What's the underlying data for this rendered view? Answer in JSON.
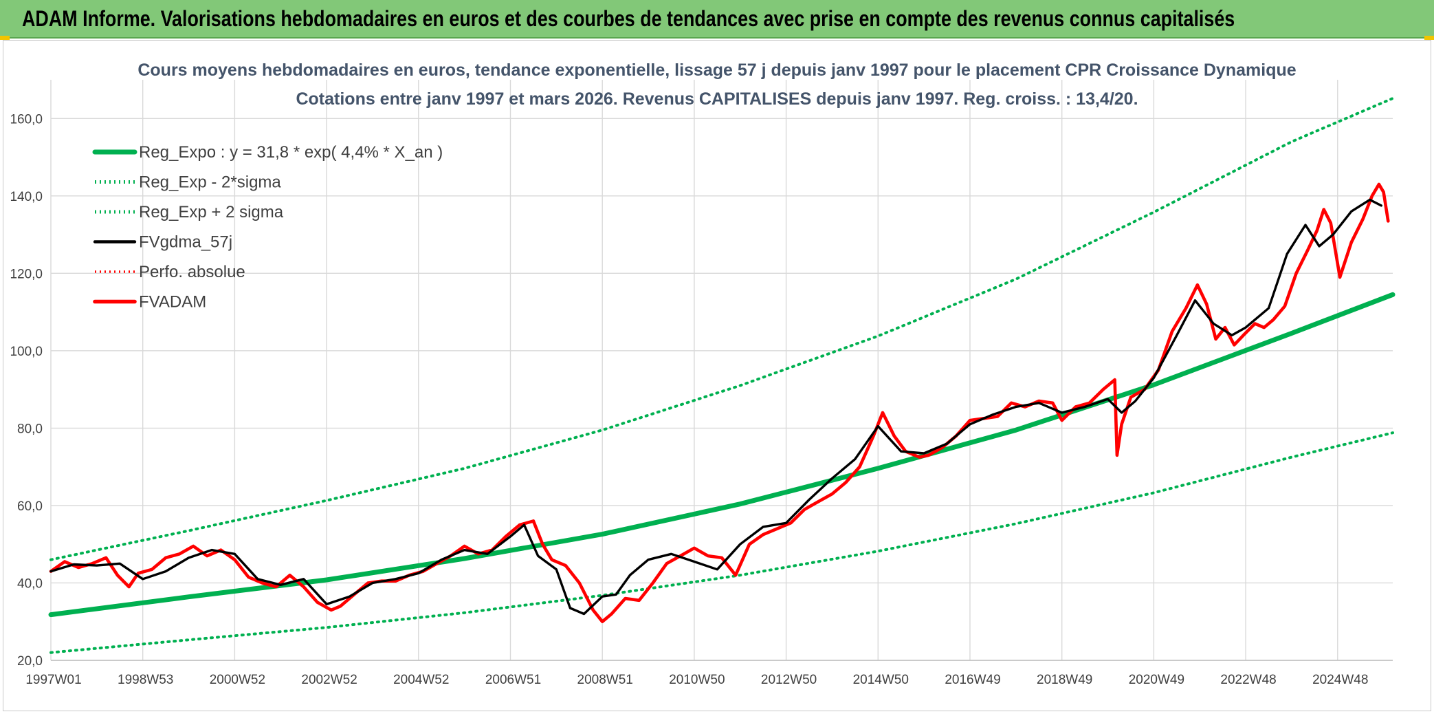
{
  "banner": {
    "title": "ADAM Informe. Valorisations hebdomadaires en euros et des courbes de tendances avec prise en compte des revenus connus capitalisés"
  },
  "colors": {
    "banner_bg": "#82c878",
    "trend": "#00b050",
    "band": "#00b050",
    "gdma": "#000000",
    "perfo": "#ff0000",
    "fvadam": "#ff0000"
  },
  "chart_data": {
    "type": "line",
    "title": "Cours moyens hebdomadaires en euros, tendance exponentielle, lissage 57 j depuis janv 1997 pour le placement CPR Croissance Dynamique",
    "subtitle": "Cotations entre janv 1997 et mars 2026. Revenus CAPITALISES depuis janv 1997. Reg. croiss. : 13,4/20.",
    "xlabel": "",
    "ylabel": "",
    "ylim": [
      20,
      170
    ],
    "xlim": [
      1997.0,
      2026.2
    ],
    "grid": true,
    "legend_position": "top-left",
    "y_ticks": [
      "20,0",
      "40,0",
      "60,0",
      "80,0",
      "100,0",
      "120,0",
      "140,0",
      "160,0"
    ],
    "x_tick_labels": [
      "1997W01",
      "1998W53",
      "2000W52",
      "2002W52",
      "2004W52",
      "2006W51",
      "2008W51",
      "2010W50",
      "2012W50",
      "2014W50",
      "2016W49",
      "2018W49",
      "2020W49",
      "2022W48",
      "2024W48"
    ],
    "x_tick_years": [
      1997.0,
      1999.0,
      2001.0,
      2003.0,
      2005.0,
      2007.0,
      2009.0,
      2011.0,
      2013.0,
      2015.0,
      2017.0,
      2019.0,
      2021.0,
      2023.0,
      2025.0
    ],
    "series": [
      {
        "name": "Reg_Expo : y = 31,8 * exp( 4,4% *  X_an )",
        "style": "solid-thick",
        "x": [
          1997.0,
          2000.0,
          2003.0,
          2006.0,
          2009.0,
          2012.0,
          2015.0,
          2018.0,
          2021.0,
          2024.0,
          2026.2
        ],
        "y": [
          31.8,
          36.4,
          40.8,
          46.3,
          52.6,
          60.4,
          69.6,
          79.5,
          91.2,
          104.5,
          114.5
        ]
      },
      {
        "name": "Reg_Exp - 2*sigma",
        "style": "dotted",
        "x": [
          1997.0,
          2000.0,
          2003.0,
          2006.0,
          2009.0,
          2012.0,
          2015.0,
          2018.0,
          2021.0,
          2024.0,
          2026.2
        ],
        "y": [
          22.0,
          25.3,
          28.5,
          32.3,
          36.8,
          42.0,
          48.2,
          55.3,
          63.3,
          72.5,
          78.8
        ]
      },
      {
        "name": "Reg_Exp + 2 sigma",
        "style": "dotted",
        "x": [
          1997.0,
          2000.0,
          2003.0,
          2006.0,
          2009.0,
          2012.0,
          2015.0,
          2018.0,
          2021.0,
          2024.0,
          2026.2
        ],
        "y": [
          46.0,
          53.5,
          61.3,
          69.6,
          79.5,
          91.0,
          103.8,
          118.5,
          135.8,
          154.0,
          165.2
        ]
      },
      {
        "name": "FVgdma_57j",
        "style": "solid",
        "x": [
          1997.0,
          1997.5,
          1998.0,
          1998.5,
          1999.0,
          1999.5,
          2000.0,
          2000.5,
          2001.0,
          2001.5,
          2002.0,
          2002.5,
          2003.0,
          2003.5,
          2004.0,
          2004.5,
          2005.0,
          2005.5,
          2006.0,
          2006.5,
          2007.0,
          2007.3,
          2007.6,
          2008.0,
          2008.3,
          2008.6,
          2009.0,
          2009.3,
          2009.6,
          2010.0,
          2010.5,
          2011.0,
          2011.5,
          2012.0,
          2012.5,
          2013.0,
          2013.5,
          2014.0,
          2014.5,
          2015.0,
          2015.5,
          2016.0,
          2016.5,
          2017.0,
          2017.5,
          2018.0,
          2018.5,
          2019.0,
          2019.5,
          2020.0,
          2020.3,
          2020.6,
          2021.0,
          2021.5,
          2021.9,
          2022.3,
          2022.7,
          2023.0,
          2023.5,
          2023.9,
          2024.3,
          2024.6,
          2024.9,
          2025.3,
          2025.7,
          2025.95
        ],
        "y": [
          43.0,
          44.8,
          44.5,
          45.0,
          41.0,
          43.0,
          46.5,
          48.5,
          47.5,
          41.0,
          39.5,
          41.0,
          34.5,
          36.5,
          40.0,
          41.0,
          42.5,
          46.0,
          48.5,
          47.5,
          52.0,
          55.0,
          47.0,
          43.5,
          33.5,
          32.0,
          36.5,
          37.0,
          42.0,
          46.0,
          47.5,
          45.5,
          43.5,
          50.0,
          54.5,
          55.5,
          61.5,
          67.0,
          72.0,
          80.5,
          74.0,
          73.5,
          76.0,
          81.0,
          83.5,
          85.5,
          86.5,
          84.0,
          85.5,
          87.5,
          84.0,
          87.0,
          93.0,
          104.0,
          113.0,
          107.0,
          104.0,
          106.0,
          111.0,
          125.0,
          132.5,
          127.0,
          130.0,
          136.0,
          139.0,
          137.5
        ]
      },
      {
        "name": "Perfo. absolue",
        "style": "dotted",
        "x": [],
        "y": []
      },
      {
        "name": "FVADAM",
        "style": "solid-thick",
        "x": [
          1997.0,
          1997.3,
          1997.6,
          1997.9,
          1998.2,
          1998.45,
          1998.7,
          1998.9,
          1999.2,
          1999.5,
          1999.8,
          2000.1,
          2000.4,
          2000.7,
          2001.0,
          2001.3,
          2001.6,
          2001.9,
          2002.2,
          2002.5,
          2002.8,
          2003.1,
          2003.3,
          2003.6,
          2003.9,
          2004.2,
          2004.5,
          2004.8,
          2005.1,
          2005.4,
          2005.7,
          2006.0,
          2006.3,
          2006.6,
          2006.9,
          2007.2,
          2007.5,
          2007.7,
          2007.9,
          2008.2,
          2008.5,
          2008.8,
          2009.0,
          2009.2,
          2009.5,
          2009.8,
          2010.1,
          2010.4,
          2010.7,
          2011.0,
          2011.3,
          2011.6,
          2011.9,
          2012.2,
          2012.5,
          2012.8,
          2013.1,
          2013.4,
          2013.7,
          2014.0,
          2014.3,
          2014.6,
          2014.9,
          2015.1,
          2015.35,
          2015.6,
          2015.9,
          2016.1,
          2016.4,
          2016.7,
          2017.0,
          2017.3,
          2017.6,
          2017.9,
          2018.2,
          2018.5,
          2018.8,
          2019.0,
          2019.3,
          2019.6,
          2019.9,
          2020.15,
          2020.2,
          2020.3,
          2020.5,
          2020.8,
          2021.1,
          2021.4,
          2021.7,
          2021.95,
          2022.15,
          2022.35,
          2022.55,
          2022.75,
          2022.95,
          2023.2,
          2023.4,
          2023.6,
          2023.85,
          2024.1,
          2024.35,
          2024.55,
          2024.7,
          2024.85,
          2025.05,
          2025.3,
          2025.55,
          2025.75,
          2025.9,
          2026.0,
          2026.1
        ],
        "y": [
          43.0,
          45.5,
          44.0,
          45.0,
          46.5,
          42.0,
          39.0,
          42.5,
          43.5,
          46.5,
          47.5,
          49.5,
          47.0,
          48.5,
          46.0,
          41.5,
          40.0,
          39.0,
          42.0,
          39.0,
          35.0,
          33.0,
          34.0,
          37.0,
          40.0,
          40.5,
          40.5,
          42.0,
          43.0,
          45.0,
          47.0,
          49.5,
          47.5,
          48.5,
          52.0,
          55.0,
          56.0,
          50.0,
          46.0,
          44.5,
          40.0,
          33.0,
          30.0,
          32.0,
          36.0,
          35.5,
          40.0,
          45.0,
          47.0,
          49.0,
          47.0,
          46.5,
          42.0,
          50.0,
          52.5,
          54.0,
          55.5,
          59.0,
          61.0,
          63.0,
          66.0,
          70.0,
          78.0,
          84.0,
          78.0,
          74.0,
          72.5,
          73.0,
          75.0,
          78.0,
          82.0,
          82.5,
          83.0,
          86.5,
          85.5,
          87.0,
          86.5,
          82.0,
          85.5,
          86.5,
          90.0,
          92.5,
          73.0,
          81.0,
          88.0,
          90.0,
          95.0,
          105.0,
          111.0,
          117.0,
          112.0,
          103.0,
          106.0,
          101.5,
          104.0,
          107.0,
          106.0,
          108.0,
          111.5,
          120.0,
          126.0,
          131.0,
          136.5,
          133.0,
          119.0,
          128.0,
          134.0,
          140.0,
          143.0,
          141.0,
          133.5
        ]
      }
    ]
  }
}
